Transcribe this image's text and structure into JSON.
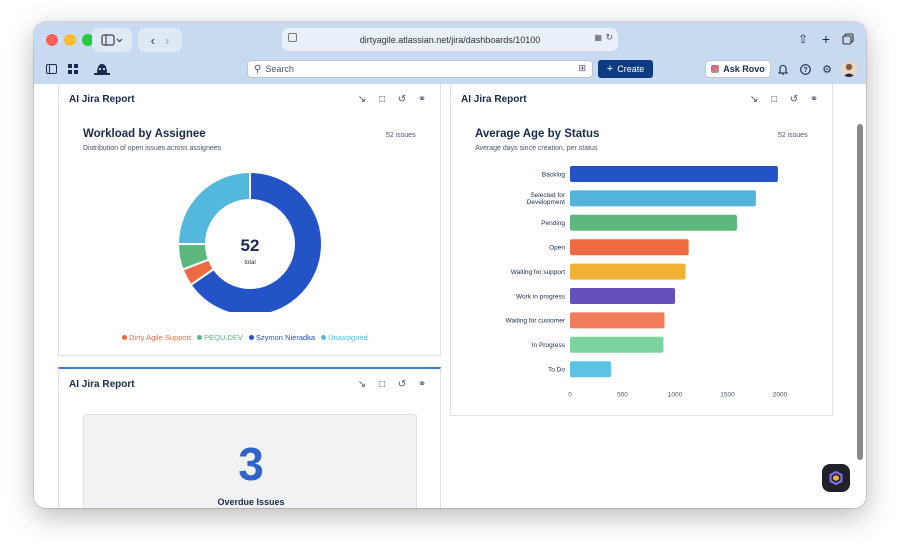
{
  "browser": {
    "url": "dirtyagile.atlassian.net/jira/dashboards/10100"
  },
  "topbar": {
    "search_placeholder": "Search",
    "create_label": "Create",
    "ask_rovo_label": "Ask Rovo"
  },
  "gadgets": [
    {
      "title": "AI Jira Report",
      "card_title": "Workload by Assignee",
      "card_subtitle": "Distribution of open issues across assignees",
      "issue_count": "52 issues",
      "center_value": "52",
      "center_label": "total"
    },
    {
      "title": "AI Jira Report",
      "card_title": "Average Age by Status",
      "card_subtitle": "Average days since creation, per status",
      "issue_count": "52 issues"
    },
    {
      "title": "AI Jira Report",
      "big_number": "3",
      "big_number_label": "Overdue Issues"
    }
  ],
  "donut_data": {
    "type": "pie",
    "series": [
      {
        "name": "Szymon Nieradka",
        "value": 34,
        "color": "#2353c7"
      },
      {
        "name": "Dirty Agile Support",
        "value": 2,
        "color": "#ee6a43"
      },
      {
        "name": "PEQU.DEV",
        "value": 3,
        "color": "#5cb87e"
      },
      {
        "name": "Unassigned",
        "value": 13,
        "color": "#53b8dc"
      }
    ],
    "legend_order": [
      "Dirty Agile Support",
      "PEQU.DEV",
      "Szymon Nieradka",
      "Unassigned"
    ]
  },
  "chart_data": {
    "type": "bar",
    "orientation": "horizontal",
    "categories": [
      "Backlog",
      "Selected for\nDevelopment",
      "Pending",
      "Open",
      "Waiting for support",
      "Work in progress",
      "Waiting for customer",
      "In Progress",
      "To Do"
    ],
    "values": [
      1980,
      1770,
      1590,
      1130,
      1100,
      1000,
      900,
      890,
      390
    ],
    "colors": [
      "#2353c7",
      "#53b3da",
      "#5cb87e",
      "#ee6a43",
      "#f2b236",
      "#6650bc",
      "#f17c5b",
      "#7bd3a0",
      "#5bc4e4"
    ],
    "xlim": [
      0,
      2000
    ],
    "xticks": [
      "0",
      "500",
      "1000",
      "1500",
      "2000"
    ],
    "grid": false
  }
}
